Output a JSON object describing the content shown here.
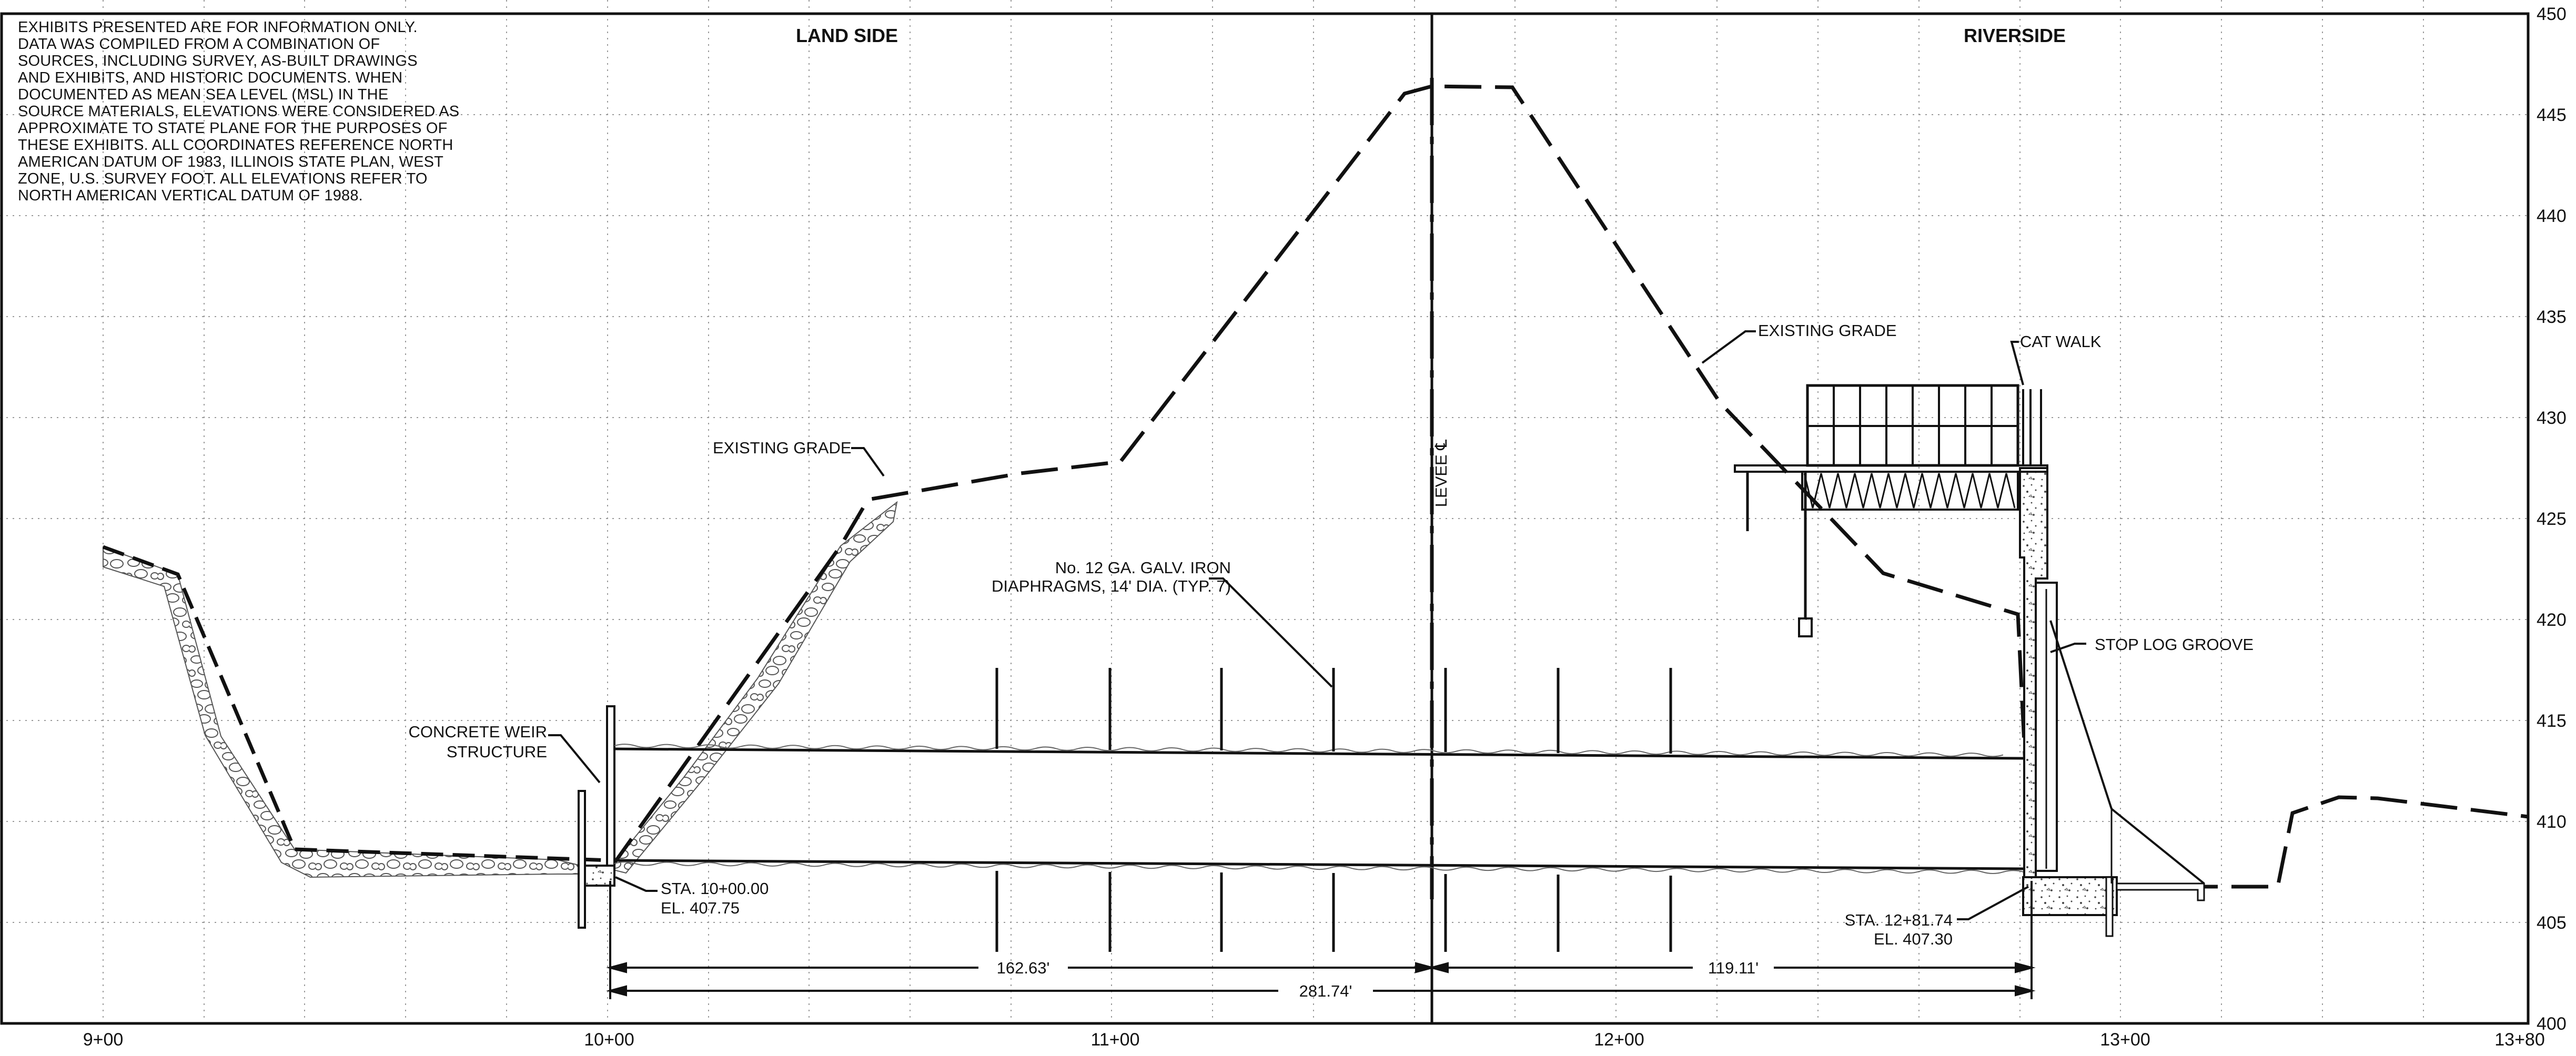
{
  "notes": [
    "EXHIBITS PRESENTED ARE FOR INFORMATION ONLY.",
    "DATA WAS COMPILED FROM A COMBINATION OF",
    "SOURCES, INCLUDING SURVEY, AS-BUILT DRAWINGS",
    "AND EXHIBITS, AND HISTORIC DOCUMENTS. WHEN",
    "DOCUMENTED AS MEAN SEA LEVEL (MSL) IN THE",
    "SOURCE MATERIALS, ELEVATIONS WERE CONSIDERED AS",
    "APPROXIMATE TO STATE PLANE FOR THE PURPOSES OF",
    "THESE EXHIBITS. ALL COORDINATES REFERENCE NORTH",
    "AMERICAN DATUM OF 1983, ILLINOIS STATE PLAN, WEST",
    "ZONE, U.S. SURVEY FOOT. ALL ELEVATIONS REFER TO",
    "NORTH AMERICAN VERTICAL DATUM OF 1988."
  ],
  "headers": {
    "land_side": "LAND SIDE",
    "riverside": "RIVERSIDE"
  },
  "station_labels": [
    "9+00",
    "10+00",
    "11+00",
    "12+00",
    "13+00",
    "13+80"
  ],
  "elevation_labels": [
    "450",
    "445",
    "440",
    "435",
    "430",
    "425",
    "420",
    "415",
    "410",
    "405",
    "400"
  ],
  "labels": {
    "existing_grade_left": "EXISTING GRADE",
    "existing_grade_right": "EXISTING GRADE",
    "cat_walk": "CAT WALK",
    "levee_cl": "LEVEE ℄",
    "diaphragms_line1": "No. 12 GA. GALV. IRON",
    "diaphragms_line2": "DIAPHRAGMS, 14' DIA. (TYP. 7)",
    "weir_line1": "CONCRETE WEIR",
    "weir_line2": "STRUCTURE",
    "stop_log": "STOP LOG GROOVE",
    "sta_left_line1": "STA. 10+00.00",
    "sta_left_line2": "EL. 407.75",
    "sta_right_line1": "STA. 12+81.74",
    "sta_right_line2": "EL. 407.30"
  },
  "dimensions": {
    "left_span": "162.63'",
    "right_span": "119.11'",
    "total_span": "281.74'"
  },
  "colors": {
    "line": "#111111",
    "grid": "#9a9a9a",
    "riprap": "#555555"
  }
}
